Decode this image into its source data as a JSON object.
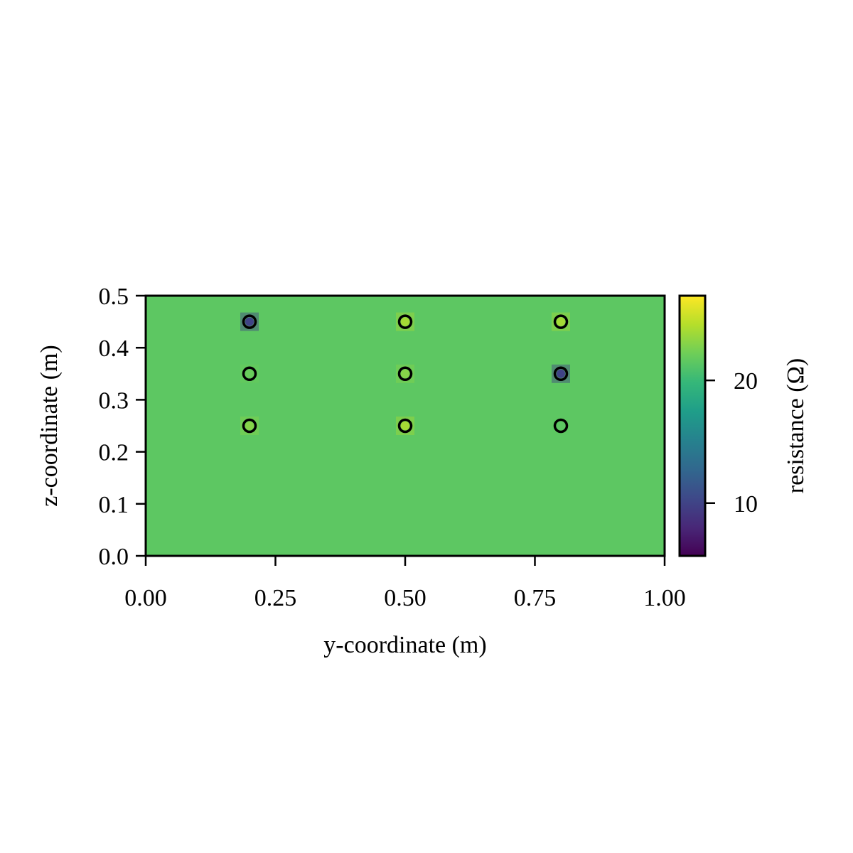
{
  "chart_data": {
    "type": "heatmap",
    "title": "",
    "xlabel": "y-coordinate (m)",
    "ylabel": "z-coordinate (m)",
    "xlim": [
      0.0,
      1.0
    ],
    "ylim": [
      0.0,
      0.5
    ],
    "x_ticks": [
      "0.00",
      "0.25",
      "0.50",
      "0.75",
      "1.00"
    ],
    "x_tick_values": [
      0.0,
      0.25,
      0.5,
      0.75,
      1.0
    ],
    "y_ticks": [
      "0.0",
      "0.1",
      "0.2",
      "0.3",
      "0.4",
      "0.5"
    ],
    "y_tick_values": [
      0.0,
      0.1,
      0.2,
      0.3,
      0.4,
      0.5
    ],
    "background_resistance": 21.5,
    "electrodes": [
      {
        "y": 0.2,
        "z": 0.45,
        "resistance": 10
      },
      {
        "y": 0.5,
        "z": 0.45,
        "resistance": 24
      },
      {
        "y": 0.8,
        "z": 0.45,
        "resistance": 24
      },
      {
        "y": 0.2,
        "z": 0.35,
        "resistance": 22
      },
      {
        "y": 0.5,
        "z": 0.35,
        "resistance": 23
      },
      {
        "y": 0.8,
        "z": 0.35,
        "resistance": 10
      },
      {
        "y": 0.2,
        "z": 0.25,
        "resistance": 23
      },
      {
        "y": 0.5,
        "z": 0.25,
        "resistance": 24
      },
      {
        "y": 0.8,
        "z": 0.25,
        "resistance": 21.5
      }
    ],
    "colorbar": {
      "label": "resistance (Ω)",
      "range": [
        5.7,
        26.9
      ],
      "ticks": [
        "10",
        "20"
      ],
      "tick_values": [
        10,
        20
      ],
      "colormap": "viridis",
      "colormap_stops": [
        "#440154",
        "#482878",
        "#3e4989",
        "#31688e",
        "#26828e",
        "#1f9e89",
        "#35b779",
        "#6ece58",
        "#b5de2b",
        "#fde725"
      ]
    },
    "grid": false
  }
}
